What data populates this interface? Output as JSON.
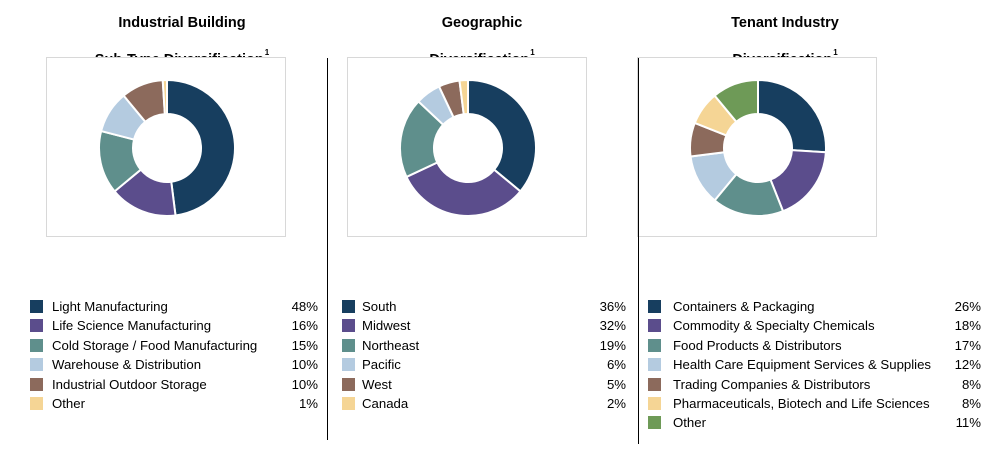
{
  "chart_data": [
    {
      "type": "pie",
      "title_line1": "Industrial Building",
      "title_line2": "Sub-Type Diversification",
      "footnote": "1",
      "categories": [
        "Light Manufacturing",
        "Life Science Manufacturing",
        "Cold Storage / Food Manufacturing",
        "Warehouse & Distribution",
        "Industrial Outdoor Storage",
        "Other"
      ],
      "values": [
        48,
        16,
        15,
        10,
        10,
        1
      ],
      "value_labels": [
        "48%",
        "16%",
        "15%",
        "10%",
        "10%",
        "1%"
      ],
      "colors": [
        "#173e5f",
        "#5b4d8c",
        "#5f8f8c",
        "#b4cbe0",
        "#8c6a5c",
        "#f5d595"
      ]
    },
    {
      "type": "pie",
      "title_line1": "Geographic",
      "title_line2": "Diversification",
      "footnote": "1",
      "categories": [
        "South",
        "Midwest",
        "Northeast",
        "Pacific",
        "West",
        "Canada"
      ],
      "values": [
        36,
        32,
        19,
        6,
        5,
        2
      ],
      "value_labels": [
        "36%",
        "32%",
        "19%",
        "6%",
        "5%",
        "2%"
      ],
      "colors": [
        "#173e5f",
        "#5b4d8c",
        "#5f8f8c",
        "#b4cbe0",
        "#8c6a5c",
        "#f5d595"
      ]
    },
    {
      "type": "pie",
      "title_line1": "Tenant Industry",
      "title_line2": "Diversification",
      "footnote": "1",
      "categories": [
        "Containers & Packaging",
        "Commodity & Specialty Chemicals",
        "Food Products & Distributors",
        "Health Care Equipment Services & Supplies",
        "Trading Companies & Distributors",
        "Pharmaceuticals, Biotech and Life Sciences",
        "Other"
      ],
      "values": [
        26,
        18,
        17,
        12,
        8,
        8,
        11
      ],
      "value_labels": [
        "26%",
        "18%",
        "17%",
        "12%",
        "8%",
        "8%",
        "11%"
      ],
      "colors": [
        "#173e5f",
        "#5b4d8c",
        "#5f8f8c",
        "#b4cbe0",
        "#8c6a5c",
        "#f5d595",
        "#6e9a57"
      ]
    }
  ]
}
